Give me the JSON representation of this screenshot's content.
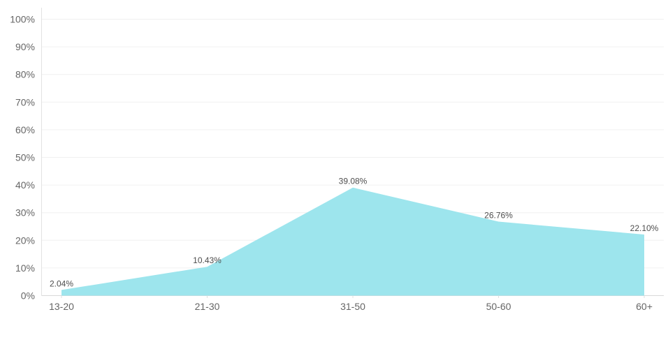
{
  "chart_data": {
    "type": "area",
    "title": "",
    "xlabel": "",
    "ylabel": "",
    "categories": [
      "13-20",
      "21-30",
      "31-50",
      "50-60",
      "60+"
    ],
    "values": [
      2.04,
      10.43,
      39.08,
      26.76,
      22.1
    ],
    "value_labels": [
      "2.04%",
      "10.43%",
      "39.08%",
      "26.76%",
      "22.10%"
    ],
    "y_tick_labels": [
      "0%",
      "10%",
      "20%",
      "30%",
      "40%",
      "50%",
      "60%",
      "70%",
      "80%",
      "90%",
      "100%"
    ],
    "ylim": [
      0,
      100
    ],
    "y_tick_step": 10,
    "grid": true,
    "legend": "none"
  },
  "colors": {
    "area_fill": "#9DE5ED",
    "gridline": "#F0F0F0",
    "x_axis_line": "#D8D8D8",
    "y_axis_line": "#E2E2E2",
    "category_tick": "#E0E0E0",
    "axis_text": "#666666",
    "data_label_text": "#4D4D4D",
    "background": "#FFFFFF"
  }
}
